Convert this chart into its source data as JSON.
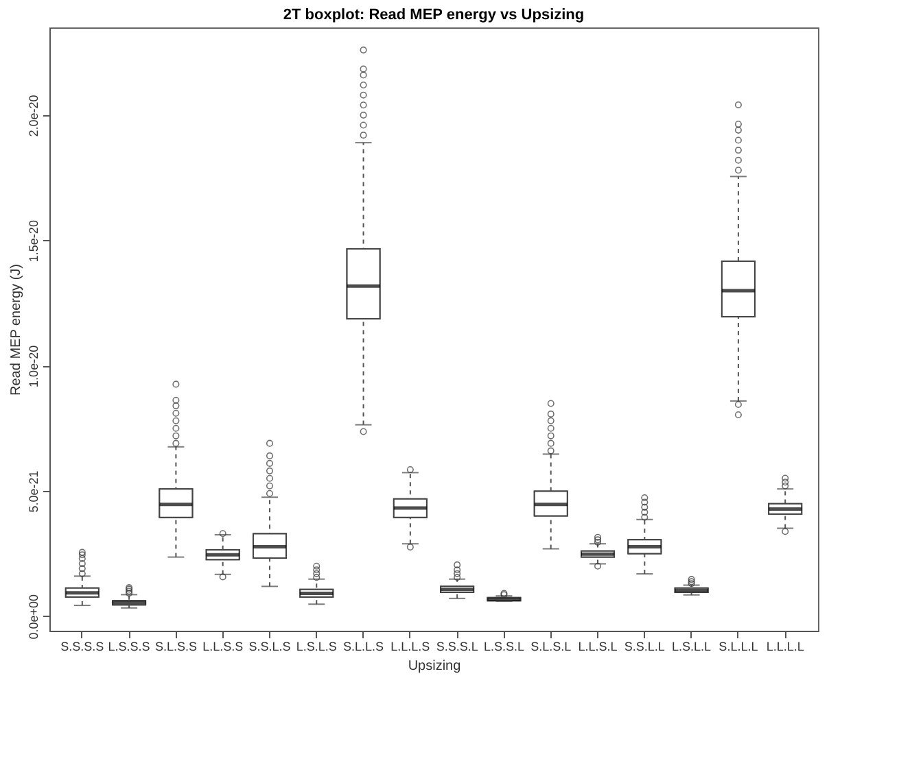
{
  "chart_data": {
    "type": "box",
    "title": "2T boxplot: Read MEP energy vs Upsizing",
    "xlabel": "Upsizing",
    "ylabel": "Read MEP energy (J)",
    "categories": [
      "S.S.S.S",
      "L.S.S.S",
      "S.L.S.S",
      "L.L.S.S",
      "S.S.L.S",
      "L.S.L.S",
      "S.L.L.S",
      "L.L.L.S",
      "S.S.S.L",
      "L.S.S.L",
      "S.L.S.L",
      "L.L.S.L",
      "S.S.L.L",
      "L.S.L.L",
      "S.L.L.L",
      "L.L.L.L"
    ],
    "boxes": [
      {
        "low": 4.3e-22,
        "q1": 7.7e-22,
        "median": 9.3e-22,
        "q3": 1.12e-21,
        "high": 1.6e-21,
        "outliers": [
          1.7e-21,
          1.9e-21,
          2.1e-21,
          2.3e-21,
          2.45e-21,
          2.55e-21
        ]
      },
      {
        "low": 3.3e-22,
        "q1": 4.5e-22,
        "median": 5.4e-22,
        "q3": 6.2e-22,
        "high": 8.6e-22,
        "outliers": [
          9.2e-22,
          1e-21,
          1.08e-21,
          1.14e-21
        ]
      },
      {
        "low": 2.36e-21,
        "q1": 3.94e-21,
        "median": 4.46e-21,
        "q3": 5.08e-21,
        "high": 6.76e-21,
        "outliers": [
          6.9e-21,
          7.2e-21,
          7.5e-21,
          7.8e-21,
          8.1e-21,
          8.4e-21,
          8.62e-21,
          9.26e-21
        ]
      },
      {
        "low": 1.67e-21,
        "q1": 2.26e-21,
        "median": 2.45e-21,
        "q3": 2.65e-21,
        "high": 3.25e-21,
        "outliers": [
          1.57e-21,
          3.3e-21
        ]
      },
      {
        "low": 1.19e-21,
        "q1": 2.32e-21,
        "median": 2.77e-21,
        "q3": 3.29e-21,
        "high": 4.75e-21,
        "outliers": [
          4.9e-21,
          5.2e-21,
          5.5e-21,
          5.8e-21,
          6.1e-21,
          6.4e-21,
          6.9e-21
        ]
      },
      {
        "low": 4.8e-22,
        "q1": 7.7e-22,
        "median": 9.1e-22,
        "q3": 1.07e-21,
        "high": 1.48e-21,
        "outliers": [
          1.55e-21,
          1.7e-21,
          1.85e-21,
          2e-21
        ]
      },
      {
        "low": 7.64e-21,
        "q1": 1.187e-20,
        "median": 1.318e-20,
        "q3": 1.466e-20,
        "high": 1.89e-20,
        "outliers": [
          7.37e-21,
          1.92e-20,
          1.96e-20,
          2e-20,
          2.04e-20,
          2.08e-20,
          2.12e-20,
          2.16e-20,
          2.184e-20,
          2.26e-20
        ]
      },
      {
        "low": 2.89e-21,
        "q1": 3.94e-21,
        "median": 4.32e-21,
        "q3": 4.68e-21,
        "high": 5.73e-21,
        "outliers": [
          2.76e-21,
          5.85e-21
        ]
      },
      {
        "low": 7.1e-22,
        "q1": 9.5e-22,
        "median": 1.07e-21,
        "q3": 1.19e-21,
        "high": 1.48e-21,
        "outliers": [
          1.55e-21,
          1.7e-21,
          1.85e-21,
          2.05e-21
        ]
      },
      {
        "low": 6e-22,
        "q1": 6.2e-22,
        "median": 6.7e-22,
        "q3": 7.4e-22,
        "high": 8.1e-22,
        "outliers": [
          8.6e-22,
          9.1e-22
        ]
      },
      {
        "low": 2.69e-21,
        "q1": 4e-21,
        "median": 4.46e-21,
        "q3": 4.99e-21,
        "high": 6.47e-21,
        "outliers": [
          6.6e-21,
          6.9e-21,
          7.2e-21,
          7.5e-21,
          7.8e-21,
          8.07e-21,
          8.49e-21
        ]
      },
      {
        "low": 2.09e-21,
        "q1": 2.36e-21,
        "median": 2.48e-21,
        "q3": 2.6e-21,
        "high": 2.89e-21,
        "outliers": [
          2e-21,
          2.95e-21,
          3.05e-21,
          3.15e-21
        ]
      },
      {
        "low": 1.69e-21,
        "q1": 2.5e-21,
        "median": 2.77e-21,
        "q3": 3.05e-21,
        "high": 3.86e-21,
        "outliers": [
          3.95e-21,
          4.15e-21,
          4.35e-21,
          4.55e-21,
          4.73e-21
        ]
      },
      {
        "low": 8.5e-22,
        "q1": 9.5e-22,
        "median": 1.03e-21,
        "q3": 1.12e-21,
        "high": 1.24e-21,
        "outliers": [
          1.3e-21,
          1.38e-21,
          1.47e-21
        ]
      },
      {
        "low": 8.59e-21,
        "q1": 1.195e-20,
        "median": 1.299e-20,
        "q3": 1.417e-20,
        "high": 1.755e-20,
        "outliers": [
          8.45e-21,
          8.04e-21,
          1.78e-20,
          1.82e-20,
          1.86e-20,
          1.9e-20,
          1.94e-20,
          1.964e-20,
          2.041e-20
        ]
      },
      {
        "low": 3.51e-21,
        "q1": 4.08e-21,
        "median": 4.28e-21,
        "q3": 4.49e-21,
        "high": 5.08e-21,
        "outliers": [
          3.38e-21,
          5.2e-21,
          5.35e-21,
          5.51e-21
        ]
      }
    ],
    "ylim": [
      -5.8e-22,
      2.35e-20
    ],
    "yticks": [
      {
        "value": 0,
        "label": "0.0e+00"
      },
      {
        "value": 5e-21,
        "label": "5.0e-21"
      },
      {
        "value": 1e-20,
        "label": "1.0e-20"
      },
      {
        "value": 1.5e-20,
        "label": "1.5e-20"
      },
      {
        "value": 2e-20,
        "label": "2.0e-20"
      }
    ]
  }
}
